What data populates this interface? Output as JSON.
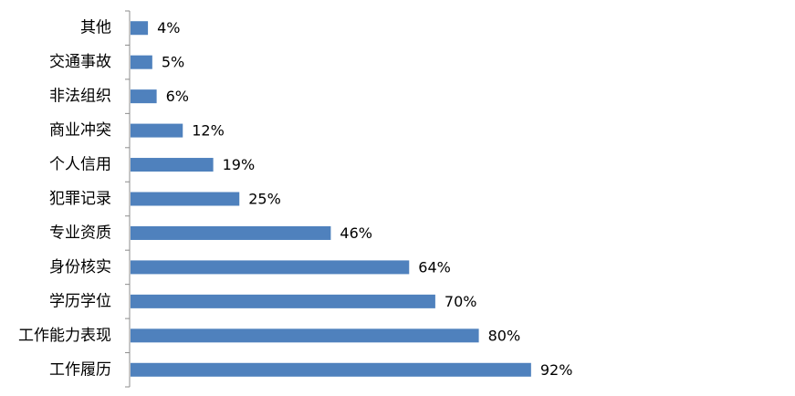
{
  "chart_data": {
    "type": "bar",
    "orientation": "horizontal",
    "categories": [
      "其他",
      "交通事故",
      "非法组织",
      "商业冲突",
      "个人信用",
      "犯罪记录",
      "专业资质",
      "身份核实",
      "学历学位",
      "工作能力表现",
      "工作履历"
    ],
    "values": [
      4,
      5,
      6,
      12,
      19,
      25,
      46,
      64,
      70,
      80,
      92
    ],
    "value_labels": [
      "4%",
      "5%",
      "6%",
      "12%",
      "19%",
      "25%",
      "46%",
      "64%",
      "70%",
      "80%",
      "92%"
    ],
    "unit": "%",
    "title": "",
    "xlabel": "",
    "ylabel": "",
    "xlim": [
      0,
      100
    ],
    "grid": false,
    "legend": "none",
    "bar_color": "#4F81BD",
    "axis_color": "#8C8C8C"
  }
}
